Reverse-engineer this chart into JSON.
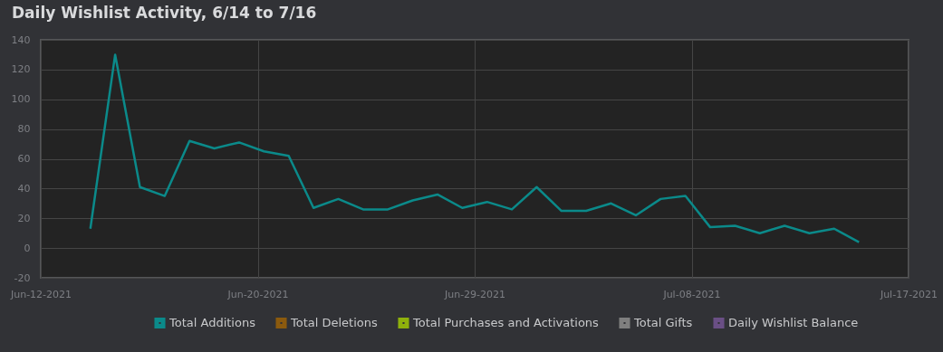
{
  "chart_data": {
    "type": "line",
    "title": "Daily Wishlist Activity, 6/14 to 7/16",
    "x": [
      "2021-06-14",
      "2021-06-15",
      "2021-06-16",
      "2021-06-17",
      "2021-06-18",
      "2021-06-19",
      "2021-06-20",
      "2021-06-21",
      "2021-06-22",
      "2021-06-23",
      "2021-06-24",
      "2021-06-25",
      "2021-06-26",
      "2021-06-27",
      "2021-06-28",
      "2021-06-29",
      "2021-06-30",
      "2021-07-01",
      "2021-07-02",
      "2021-07-03",
      "2021-07-04",
      "2021-07-05",
      "2021-07-06",
      "2021-07-07",
      "2021-07-08",
      "2021-07-09",
      "2021-07-10",
      "2021-07-11",
      "2021-07-12",
      "2021-07-13",
      "2021-07-14",
      "2021-07-15"
    ],
    "series": [
      {
        "name": "Total Additions",
        "color": "#0b8a8a",
        "values": [
          13,
          130,
          41,
          35,
          72,
          67,
          71,
          65,
          62,
          27,
          33,
          26,
          26,
          32,
          36,
          27,
          31,
          26,
          41,
          25,
          25,
          30,
          22,
          33,
          35,
          14,
          15,
          10,
          15,
          10,
          13,
          4
        ]
      },
      {
        "name": "Total Deletions",
        "color": "#8b5a0e",
        "values": [
          null,
          null,
          null,
          null,
          null,
          null,
          null,
          null,
          null,
          null,
          null,
          null,
          null,
          null,
          null,
          null,
          null,
          null,
          null,
          null,
          null,
          null,
          null,
          null,
          null,
          null,
          null,
          null,
          null,
          null,
          null,
          null
        ]
      },
      {
        "name": "Total Purchases and Activations",
        "color": "#8fb10c",
        "values": [
          null,
          null,
          null,
          null,
          null,
          null,
          null,
          null,
          null,
          null,
          null,
          null,
          null,
          null,
          null,
          null,
          null,
          null,
          null,
          null,
          null,
          null,
          null,
          null,
          null,
          null,
          null,
          null,
          null,
          null,
          null,
          null
        ]
      },
      {
        "name": "Total Gifts",
        "color": "#7f7f7f",
        "values": [
          null,
          null,
          null,
          null,
          null,
          null,
          null,
          null,
          null,
          null,
          null,
          null,
          null,
          null,
          null,
          null,
          null,
          null,
          null,
          null,
          null,
          null,
          null,
          null,
          null,
          null,
          null,
          null,
          null,
          null,
          null,
          null
        ]
      },
      {
        "name": "Daily Wishlist Balance",
        "color": "#6a4f85",
        "values": [
          null,
          null,
          null,
          null,
          null,
          null,
          null,
          null,
          null,
          null,
          null,
          null,
          null,
          null,
          null,
          null,
          null,
          null,
          null,
          null,
          null,
          null,
          null,
          null,
          null,
          null,
          null,
          null,
          null,
          null,
          null,
          null
        ]
      }
    ],
    "xlim": [
      "2021-06-12",
      "2021-07-17"
    ],
    "xticks": [
      {
        "value": "2021-06-12",
        "label": "Jun-12-2021"
      },
      {
        "value": "2021-06-20T18:00",
        "label": "Jun-20-2021"
      },
      {
        "value": "2021-06-29T12:00",
        "label": "Jun-29-2021"
      },
      {
        "value": "2021-07-08T06:00",
        "label": "Jul-08-2021"
      },
      {
        "value": "2021-07-17",
        "label": "Jul-17-2021"
      }
    ],
    "ylim": [
      -20,
      140
    ],
    "yticks": [
      -20,
      0,
      20,
      40,
      60,
      80,
      100,
      120,
      140
    ],
    "grid": true,
    "legend": "bottom",
    "marker": "none",
    "line_style": "solid"
  }
}
